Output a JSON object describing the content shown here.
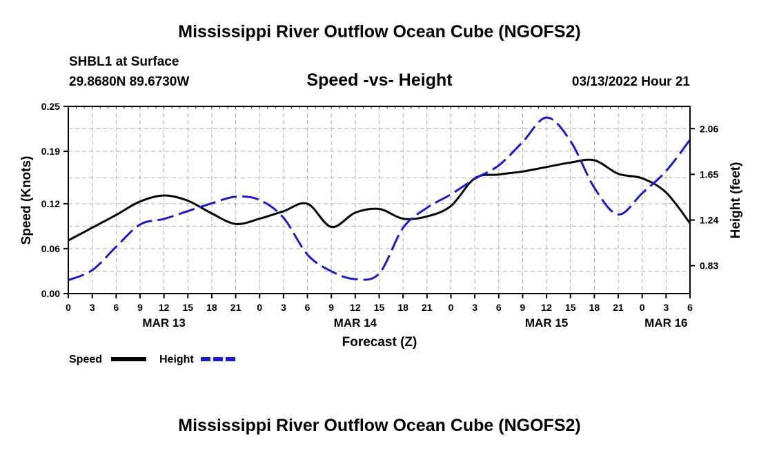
{
  "header": {
    "title": "Mississippi River Outflow Ocean Cube (NGOFS2)",
    "station": "SHBL1 at Surface",
    "position": "29.8680N  89.6730W",
    "chart_title": "Speed -vs- Height",
    "datetime": "03/13/2022 Hour 21",
    "footer_title": "Mississippi River Outflow Ocean Cube (NGOFS2)"
  },
  "legend": {
    "speed_label": "Speed",
    "height_label": "Height"
  },
  "colors": {
    "speed": "#000000",
    "height": "#1a1acc",
    "grid": "#b0b0b0"
  },
  "chart_data": {
    "type": "line",
    "title": "Speed -vs- Height",
    "xlabel": "Forecast (Z)",
    "ylabel": "Speed (Knots)",
    "y2label": "Height (feet)",
    "x_unit": "hours since 03/13 00Z",
    "xlim": [
      0,
      78
    ],
    "ylim": [
      0,
      0.25
    ],
    "y2lim": [
      0.58,
      2.26
    ],
    "grid": true,
    "legend_position": "bottom-left",
    "x_ticks": [
      0,
      3,
      6,
      9,
      12,
      15,
      18,
      21,
      24,
      27,
      30,
      33,
      36,
      39,
      42,
      45,
      48,
      51,
      54,
      57,
      60,
      63,
      66,
      69,
      72,
      75,
      78
    ],
    "x_tick_labels": [
      "0",
      "3",
      "6",
      "9",
      "12",
      "15",
      "18",
      "21",
      "0",
      "3",
      "6",
      "9",
      "12",
      "15",
      "18",
      "21",
      "0",
      "3",
      "6",
      "9",
      "12",
      "15",
      "18",
      "21",
      "0",
      "3",
      "6"
    ],
    "day_labels": [
      {
        "x": 12,
        "label": "MAR 13"
      },
      {
        "x": 36,
        "label": "MAR 14"
      },
      {
        "x": 60,
        "label": "MAR 15"
      },
      {
        "x": 75,
        "label": "MAR 16"
      }
    ],
    "y_ticks": [
      0.0,
      0.06,
      0.12,
      0.19,
      0.25
    ],
    "y_tick_labels": [
      "0.00",
      "0.06",
      "0.12",
      "0.19",
      "0.25"
    ],
    "y2_ticks": [
      0.83,
      1.24,
      1.65,
      2.06
    ],
    "y2_tick_labels": [
      "0.83",
      "1.24",
      "1.65",
      "2.06"
    ],
    "series": [
      {
        "name": "Speed",
        "axis": "left",
        "style": "solid",
        "x": [
          0,
          3,
          6,
          9,
          12,
          15,
          18,
          21,
          24,
          27,
          30,
          33,
          36,
          39,
          42,
          45,
          48,
          51,
          54,
          57,
          60,
          63,
          66,
          69,
          72,
          75,
          78
        ],
        "values": [
          0.071,
          0.088,
          0.105,
          0.123,
          0.131,
          0.124,
          0.107,
          0.093,
          0.1,
          0.11,
          0.12,
          0.089,
          0.108,
          0.113,
          0.1,
          0.103,
          0.117,
          0.154,
          0.159,
          0.163,
          0.169,
          0.175,
          0.178,
          0.16,
          0.154,
          0.135,
          0.094
        ]
      },
      {
        "name": "Height",
        "axis": "right",
        "style": "dashed",
        "x": [
          0,
          3,
          6,
          9,
          12,
          15,
          18,
          21,
          24,
          27,
          30,
          33,
          36,
          39,
          42,
          45,
          48,
          51,
          54,
          57,
          60,
          63,
          66,
          69,
          72,
          75,
          78
        ],
        "values": [
          0.7,
          0.79,
          1.0,
          1.2,
          1.25,
          1.32,
          1.39,
          1.45,
          1.42,
          1.26,
          0.93,
          0.78,
          0.71,
          0.76,
          1.17,
          1.35,
          1.47,
          1.61,
          1.73,
          1.94,
          2.16,
          1.95,
          1.53,
          1.29,
          1.48,
          1.68,
          1.96
        ]
      }
    ]
  }
}
